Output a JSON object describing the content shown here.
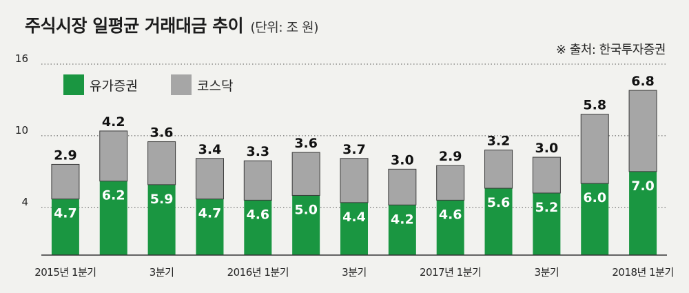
{
  "title": "주식시장 일평균 거래대금 추이",
  "unit": "(단위: 조 원)",
  "source": "※ 출처: 한국투자증권",
  "colors": {
    "yuga": "#1a9641",
    "kosdaq": "#a6a6a6",
    "background": "#f2f2ef"
  },
  "chart_data": {
    "type": "bar",
    "stacked": true,
    "title": "주식시장 일평균 거래대금 추이",
    "unit_label": "(단위: 조 원)",
    "categories": [
      "2015년 1분기",
      "",
      "3분기",
      "",
      "2016년 1분기",
      "",
      "3분기",
      "",
      "2017년 1분기",
      "",
      "3분기",
      "",
      "2018년 1분기"
    ],
    "series": [
      {
        "name": "유가증권",
        "color": "#1a9641",
        "values": [
          4.7,
          6.2,
          5.9,
          4.7,
          4.6,
          5.0,
          4.4,
          4.2,
          4.6,
          5.6,
          5.2,
          6.0,
          7.0
        ]
      },
      {
        "name": "코스닥",
        "color": "#a6a6a6",
        "values": [
          2.9,
          4.2,
          3.6,
          3.4,
          3.3,
          3.6,
          3.7,
          3.0,
          2.9,
          3.2,
          3.0,
          5.8,
          6.8
        ]
      }
    ],
    "yticks": [
      4,
      10,
      16
    ],
    "ylim": [
      0,
      16
    ],
    "grid": true,
    "legend": "top-left"
  }
}
